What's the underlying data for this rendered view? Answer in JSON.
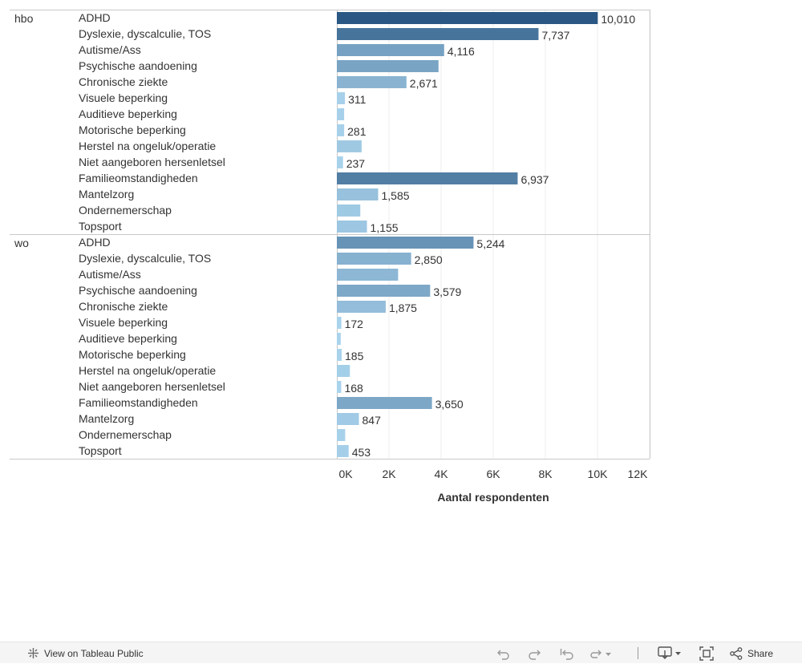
{
  "chart_data": {
    "type": "bar",
    "orientation": "horizontal",
    "title": "",
    "xlabel": "Aantal respondenten",
    "xlim": [
      0,
      12000
    ],
    "xticks": [
      0,
      2000,
      4000,
      6000,
      8000,
      10000,
      12000
    ],
    "xtick_labels": [
      "0K",
      "2K",
      "4K",
      "6K",
      "8K",
      "10K",
      "12K"
    ],
    "groups": [
      {
        "name": "hbo",
        "categories": [
          "ADHD",
          "Dyslexie, dyscalculie, TOS",
          "Autisme/Ass",
          "Psychische aandoening",
          "Chronische ziekte",
          "Visuele beperking",
          "Auditieve beperking",
          "Motorische beperking",
          "Herstel na ongeluk/operatie",
          "Niet aangeboren hersenletsel",
          "Familieomstandigheden",
          "Mantelzorg",
          "Ondernemerschap",
          "Topsport"
        ],
        "values": [
          10010,
          7737,
          4116,
          3900,
          2671,
          311,
          280,
          281,
          950,
          237,
          6937,
          1585,
          900,
          1155
        ],
        "labels": [
          "10,010",
          "7,737",
          "4,116",
          "",
          "2,671",
          "311",
          "",
          "281",
          "",
          "237",
          "6,937",
          "1,585",
          "",
          "1,155"
        ]
      },
      {
        "name": "wo",
        "categories": [
          "ADHD",
          "Dyslexie, dyscalculie, TOS",
          "Autisme/Ass",
          "Psychische aandoening",
          "Chronische ziekte",
          "Visuele beperking",
          "Auditieve beperking",
          "Motorische beperking",
          "Herstel na ongeluk/operatie",
          "Niet aangeboren hersenletsel",
          "Familieomstandigheden",
          "Mantelzorg",
          "Ondernemerschap",
          "Topsport"
        ],
        "values": [
          5244,
          2850,
          2350,
          3579,
          1875,
          172,
          150,
          185,
          500,
          168,
          3650,
          847,
          320,
          453
        ],
        "labels": [
          "5,244",
          "2,850",
          "",
          "3,579",
          "1,875",
          "172",
          "",
          "185",
          "",
          "168",
          "3,650",
          "847",
          "",
          "453"
        ]
      }
    ]
  },
  "colors": {
    "bar_min": "#a9d3ec",
    "bar_max": "#2a5783",
    "gridline": "#eeeeee",
    "divider": "#c8c8c8",
    "text": "#333333"
  },
  "toolbar": {
    "view_on_label": "View on Tableau Public",
    "share_label": "Share",
    "icons": [
      "tableau-logo-icon",
      "undo-icon",
      "redo-icon",
      "revert-icon",
      "refresh-icon",
      "download-icon",
      "fullscreen-icon",
      "share-icon"
    ]
  }
}
